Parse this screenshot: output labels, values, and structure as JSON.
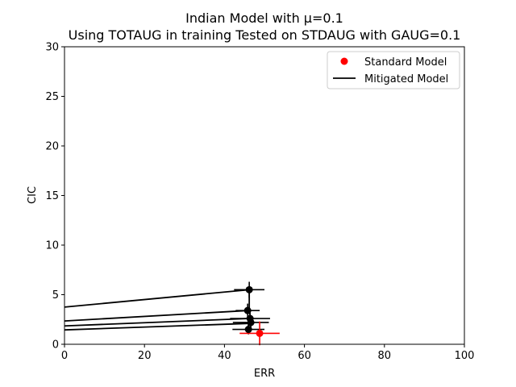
{
  "chart_data": {
    "type": "scatter",
    "title_line1": "Indian Model with μ=0.1",
    "title_line2": "Using TOTAUG in training Tested on STDAUG with GAUG=0.1",
    "xlabel": "ERR",
    "ylabel": "CIC",
    "xlim": [
      0,
      100
    ],
    "ylim": [
      0,
      30
    ],
    "x_ticks": [
      0,
      20,
      40,
      60,
      80,
      100
    ],
    "y_ticks": [
      0,
      5,
      10,
      15,
      20,
      25,
      30
    ],
    "grid": false,
    "legend_position": "top-right",
    "legend": {
      "standard": "Standard Model",
      "mitigated": "Mitigated Model"
    },
    "colors": {
      "standard": "#ff0000",
      "mitigated": "#000000"
    },
    "standard_points": [
      {
        "x": 48.8,
        "y": 1.1,
        "xerr": 5.0,
        "yerr": 1.2
      }
    ],
    "mitigated_points": [
      {
        "x": 46.2,
        "y": 5.5,
        "xerr": 3.8,
        "yerr": 0.8
      },
      {
        "x": 45.8,
        "y": 3.4,
        "xerr": 3.0,
        "yerr": 0.7
      },
      {
        "x": 46.4,
        "y": 2.6,
        "xerr": 5.0,
        "yerr": 0.6
      },
      {
        "x": 46.6,
        "y": 2.2,
        "xerr": 4.5,
        "yerr": 0.5
      },
      {
        "x": 46.0,
        "y": 1.5,
        "xerr": 4.0,
        "yerr": 0.5
      }
    ],
    "mitigated_lines": [
      {
        "x": [
          0,
          46.2
        ],
        "y": [
          3.75,
          5.5
        ]
      },
      {
        "x": [
          0,
          45.8
        ],
        "y": [
          2.35,
          3.4
        ]
      },
      {
        "x": [
          0,
          46.4
        ],
        "y": [
          1.85,
          2.6
        ]
      },
      {
        "x": [
          0,
          46.0
        ],
        "y": [
          1.45,
          2.1
        ]
      },
      {
        "x": [
          46.2,
          46.2,
          46.6,
          46.0,
          46.0
        ],
        "y": [
          5.5,
          3.4,
          2.5,
          2.0,
          1.4
        ]
      }
    ]
  }
}
